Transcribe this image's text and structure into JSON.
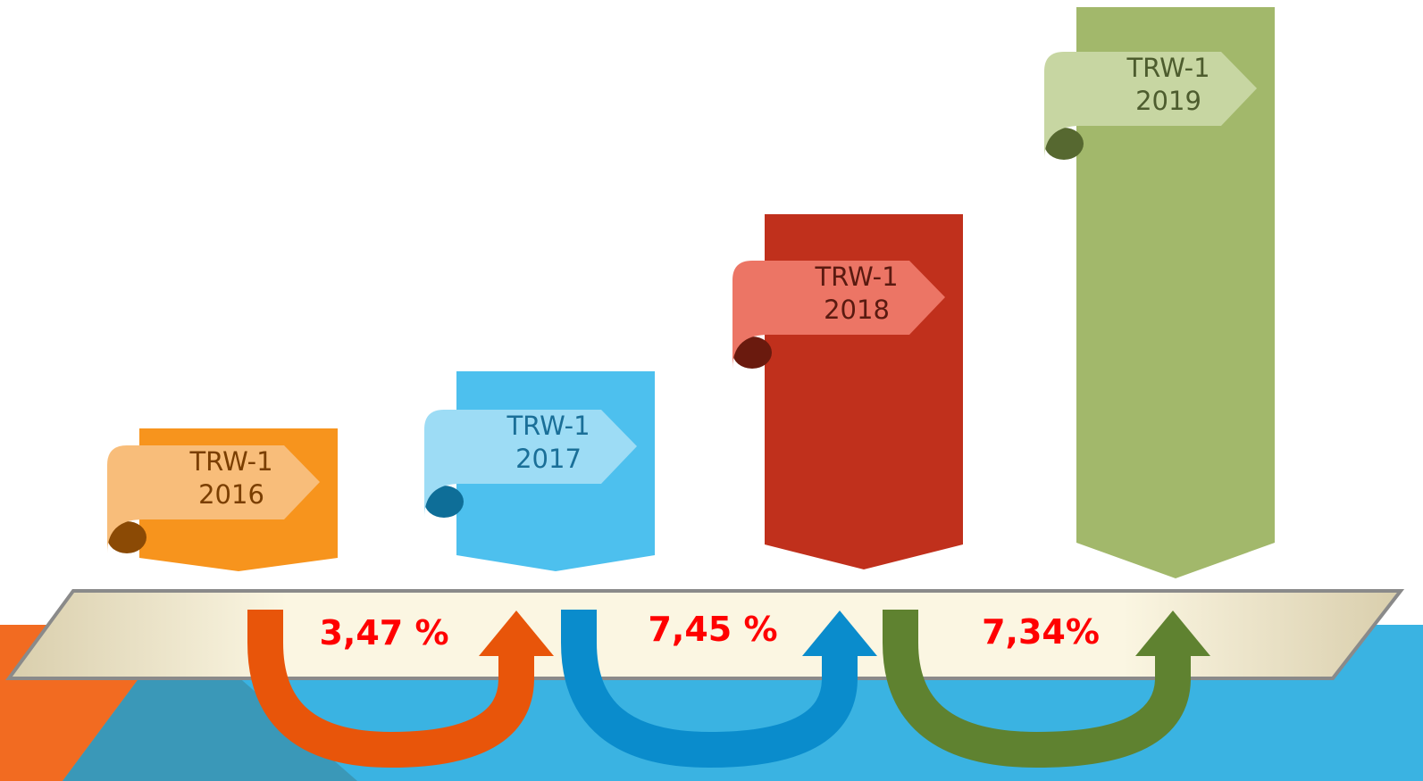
{
  "columns": [
    {
      "label": "TRW-1",
      "year": "2016"
    },
    {
      "label": "TRW-1",
      "year": "2017"
    },
    {
      "label": "TRW-1",
      "year": "2018"
    },
    {
      "label": "TRW-1",
      "year": "2019"
    }
  ],
  "growth": [
    "3,47 %",
    "7,45 %",
    "7,34%"
  ]
}
